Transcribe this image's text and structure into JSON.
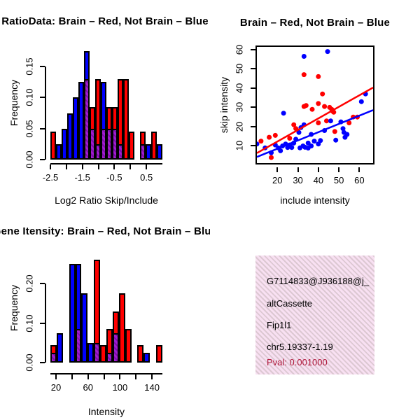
{
  "colors": {
    "red": "#ff0000",
    "blue": "#0000ff",
    "overlap_purple": "#a21cd0",
    "overlap_purple_dark": "#7a10a8",
    "pval_red": "#b0173a",
    "info_bg_pink": "#f8e0f2",
    "info_bg_stripe": "#dcc8d2",
    "axis_black": "#000000"
  },
  "chart_data": [
    {
      "id": "hist_log2_ratio",
      "type": "bar",
      "subtype": "overlaid-histogram",
      "title": "RatioData: Brain – Red, Not Brain – Blue",
      "xlabel": "Log2 Ratio Skip/Include",
      "ylabel": "Frequency",
      "series_legend": {
        "red": "Brain",
        "blue": "Not Brain"
      },
      "x_range": [
        -2.5,
        1.0
      ],
      "y_max": 0.183,
      "bin_width": 0.175,
      "x_ticks": [
        {
          "v": -2.5,
          "label": "-2.5"
        },
        {
          "v": -2.0,
          "label": ""
        },
        {
          "v": -1.5,
          "label": "-1.5"
        },
        {
          "v": -1.0,
          "label": ""
        },
        {
          "v": -0.5,
          "label": "-0.5"
        },
        {
          "v": 0.0,
          "label": ""
        },
        {
          "v": 0.5,
          "label": "0.5"
        }
      ],
      "y_ticks": [
        {
          "v": 0.0,
          "label": "0.00"
        },
        {
          "v": 0.05,
          "label": "0.05"
        },
        {
          "v": 0.1,
          "label": "0.10"
        },
        {
          "v": 0.15,
          "label": "0.15"
        }
      ],
      "bins": [
        {
          "x": -2.5,
          "red": 0.045,
          "blue": 0
        },
        {
          "x": -2.325,
          "red": 0,
          "blue": 0.025
        },
        {
          "x": -2.15,
          "red": 0,
          "blue": 0.05
        },
        {
          "x": -1.975,
          "red": 0,
          "blue": 0.075
        },
        {
          "x": -1.8,
          "red": 0,
          "blue": 0.1
        },
        {
          "x": -1.625,
          "red": 0,
          "blue": 0.125
        },
        {
          "x": -1.45,
          "red": 0.13,
          "blue": 0.175
        },
        {
          "x": -1.275,
          "red": 0.085,
          "blue": 0.05
        },
        {
          "x": -1.1,
          "red": 0.13,
          "blue": 0.025
        },
        {
          "x": -0.925,
          "red": 0.05,
          "blue": 0.125
        },
        {
          "x": -0.75,
          "red": 0.085,
          "blue": 0.05
        },
        {
          "x": -0.575,
          "red": 0.085,
          "blue": 0.05
        },
        {
          "x": -0.4,
          "red": 0.13,
          "blue": 0.025
        },
        {
          "x": -0.225,
          "red": 0.13,
          "blue": 0
        },
        {
          "x": -0.05,
          "red": 0.045,
          "blue": 0
        },
        {
          "x": 0.125,
          "red": 0,
          "blue": 0
        },
        {
          "x": 0.3,
          "red": 0.045,
          "blue": 0.025
        },
        {
          "x": 0.475,
          "red": 0,
          "blue": 0.025
        },
        {
          "x": 0.65,
          "red": 0.045,
          "blue": 0
        },
        {
          "x": 0.825,
          "red": 0,
          "blue": 0.025
        }
      ]
    },
    {
      "id": "scatter_intensity",
      "type": "scatter",
      "title": "Brain – Red, Not Brain – Blue",
      "xlabel": "include intensity",
      "ylabel": "skip intensity",
      "x_range": [
        10,
        66.7
      ],
      "y_range": [
        1.1,
        61.4
      ],
      "x_ticks": [
        {
          "v": 20,
          "label": "20"
        },
        {
          "v": 30,
          "label": "30"
        },
        {
          "v": 40,
          "label": "40"
        },
        {
          "v": 50,
          "label": "50"
        },
        {
          "v": 60,
          "label": "60"
        }
      ],
      "y_ticks": [
        {
          "v": 10,
          "label": "10"
        },
        {
          "v": 20,
          "label": "20"
        },
        {
          "v": 30,
          "label": "30"
        },
        {
          "v": 40,
          "label": "40"
        },
        {
          "v": 50,
          "label": "50"
        },
        {
          "v": 60,
          "label": "60"
        }
      ],
      "series": [
        {
          "name": "Brain",
          "color_key": "red",
          "points": [
            [
              12,
              12.5
            ],
            [
              16,
              14.5
            ],
            [
              17,
              4
            ],
            [
              19,
              15.5
            ],
            [
              26,
              14
            ],
            [
              28,
              21
            ],
            [
              29,
              19
            ],
            [
              33,
              30.5
            ],
            [
              33,
              47
            ],
            [
              34,
              31
            ],
            [
              37,
              29
            ],
            [
              40,
              46
            ],
            [
              40,
              32
            ],
            [
              40,
              22
            ],
            [
              42,
              37
            ],
            [
              43,
              30.5
            ],
            [
              44,
              23
            ],
            [
              45.5,
              30
            ],
            [
              46.5,
              29
            ],
            [
              47,
              28
            ],
            [
              47.5,
              27.5
            ],
            [
              48,
              17.5
            ],
            [
              55,
              22
            ],
            [
              57,
              25
            ],
            [
              59,
              25
            ]
          ]
        },
        {
          "name": "Not Brain",
          "color_key": "blue",
          "points": [
            [
              10,
              11
            ],
            [
              14,
              9
            ],
            [
              17,
              6.5
            ],
            [
              19,
              10.5
            ],
            [
              20.5,
              9
            ],
            [
              21.5,
              7.5
            ],
            [
              22.5,
              10
            ],
            [
              23,
              27
            ],
            [
              24,
              11
            ],
            [
              25,
              9.2
            ],
            [
              26,
              10.5
            ],
            [
              27,
              9.2
            ],
            [
              28,
              11.5
            ],
            [
              29,
              13.5
            ],
            [
              30.5,
              17
            ],
            [
              31,
              9
            ],
            [
              31.5,
              19.5
            ],
            [
              32.5,
              10
            ],
            [
              33,
              21
            ],
            [
              33,
              56.5
            ],
            [
              33.5,
              9.3
            ],
            [
              35,
              11.5
            ],
            [
              35,
              8.9
            ],
            [
              36.5,
              16
            ],
            [
              36.5,
              10
            ],
            [
              38,
              12.5
            ],
            [
              40,
              11
            ],
            [
              41,
              12.8
            ],
            [
              43,
              18
            ],
            [
              44.5,
              59
            ],
            [
              46,
              23
            ],
            [
              48.5,
              13
            ],
            [
              51,
              22.5
            ],
            [
              52,
              19
            ],
            [
              52.5,
              17
            ],
            [
              53,
              14.5
            ],
            [
              54,
              16
            ],
            [
              61,
              33
            ],
            [
              63,
              37
            ]
          ]
        }
      ],
      "fit_lines": [
        {
          "color_key": "red",
          "x1": 10,
          "y1": 6.3,
          "x2": 66.7,
          "y2": 40.3
        },
        {
          "color_key": "blue",
          "x1": 10,
          "y1": 4.3,
          "x2": 66.7,
          "y2": 28.6
        }
      ]
    },
    {
      "id": "hist_gene_intensity",
      "type": "bar",
      "subtype": "overlaid-histogram",
      "title": "Gene Itensity: Brain – Red, Not Brain – Blue",
      "xlabel": "Intensity",
      "ylabel": "Frequency",
      "series_legend": {
        "red": "Brain",
        "blue": "Not Brain"
      },
      "x_range": [
        13,
        153
      ],
      "y_max": 0.275,
      "bin_width": 7.78,
      "x_ticks": [
        {
          "v": 20,
          "label": "20"
        },
        {
          "v": 40,
          "label": ""
        },
        {
          "v": 60,
          "label": "60"
        },
        {
          "v": 80,
          "label": ""
        },
        {
          "v": 100,
          "label": "100"
        },
        {
          "v": 120,
          "label": ""
        },
        {
          "v": 140,
          "label": "140"
        }
      ],
      "y_ticks": [
        {
          "v": 0.0,
          "label": "0.00"
        },
        {
          "v": 0.1,
          "label": "0.10"
        },
        {
          "v": 0.2,
          "label": "0.20"
        }
      ],
      "bins": [
        {
          "x": 13.0,
          "red": 0.045,
          "blue": 0.025
        },
        {
          "x": 20.8,
          "red": 0,
          "blue": 0.075
        },
        {
          "x": 28.6,
          "red": 0,
          "blue": 0
        },
        {
          "x": 36.3,
          "red": 0,
          "blue": 0.25
        },
        {
          "x": 44.1,
          "red": 0.085,
          "blue": 0.25
        },
        {
          "x": 51.9,
          "red": 0,
          "blue": 0.175
        },
        {
          "x": 59.7,
          "red": 0,
          "blue": 0.05
        },
        {
          "x": 67.4,
          "red": 0.26,
          "blue": 0.05
        },
        {
          "x": 75.2,
          "red": 0.045,
          "blue": 0
        },
        {
          "x": 83.0,
          "red": 0.085,
          "blue": 0.025
        },
        {
          "x": 90.8,
          "red": 0.13,
          "blue": 0.075
        },
        {
          "x": 98.6,
          "red": 0.175,
          "blue": 0
        },
        {
          "x": 106.3,
          "red": 0.085,
          "blue": 0
        },
        {
          "x": 114.1,
          "red": 0,
          "blue": 0
        },
        {
          "x": 121.9,
          "red": 0.045,
          "blue": 0
        },
        {
          "x": 129.7,
          "red": 0,
          "blue": 0.025
        },
        {
          "x": 137.4,
          "red": 0,
          "blue": 0
        },
        {
          "x": 145.2,
          "red": 0.045,
          "blue": 0
        }
      ]
    }
  ],
  "info_box": {
    "lines": [
      {
        "text": "G7114833@J936188@j_",
        "color_key": "black"
      },
      {
        "text": "altCassette",
        "color_key": "black"
      },
      {
        "text": "Fip1l1",
        "color_key": "black"
      },
      {
        "text": "chr5.19337-1.19",
        "color_key": "black"
      },
      {
        "text": "Pval: 0.001000",
        "color_key": "pval_red"
      }
    ]
  }
}
